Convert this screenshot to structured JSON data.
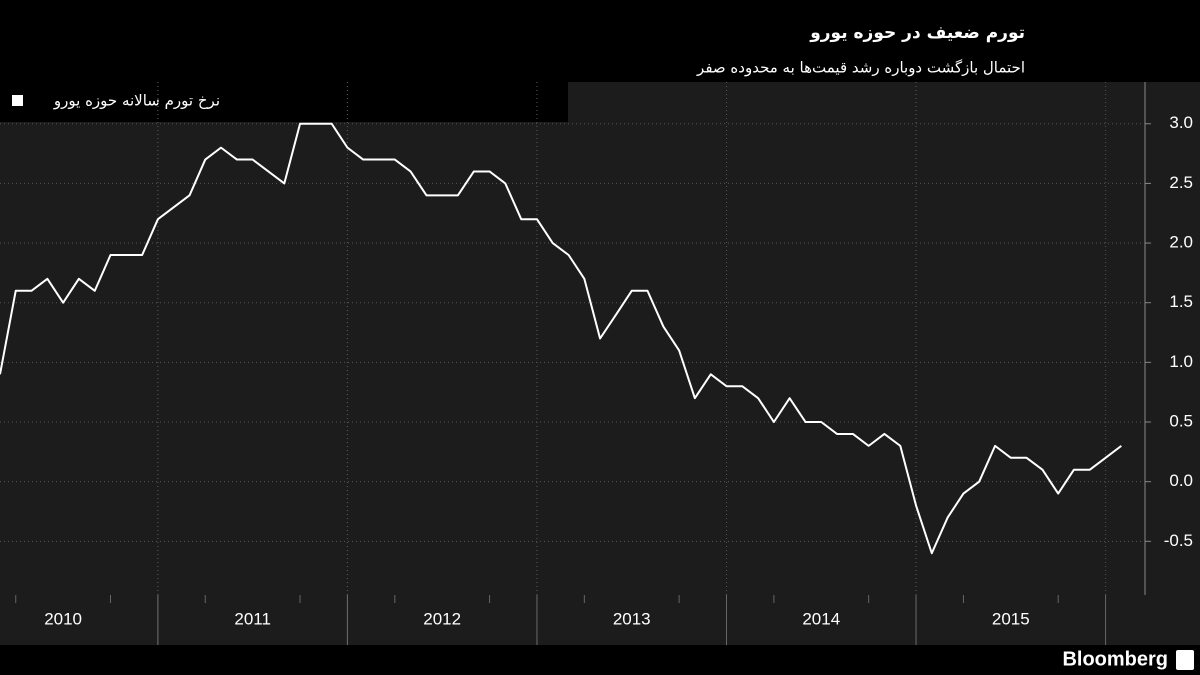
{
  "chart_data": {
    "type": "line",
    "title": "تورم ضعیف در حوزه یورو",
    "subtitle": "احتمال بازگشت دوباره رشد قیمت‌ها به محدوده صفر",
    "source": "Bloomberg",
    "series": [
      {
        "name": "نرخ تورم سالانه حوزه یورو",
        "color": "#ffffff",
        "values": [
          0.9,
          1.6,
          1.6,
          1.7,
          1.5,
          1.7,
          1.6,
          1.9,
          1.9,
          1.9,
          2.2,
          2.3,
          2.4,
          2.7,
          2.8,
          2.7,
          2.7,
          2.6,
          2.5,
          3.0,
          3.0,
          3.0,
          2.8,
          2.7,
          2.7,
          2.7,
          2.6,
          2.4,
          2.4,
          2.4,
          2.6,
          2.6,
          2.5,
          2.2,
          2.2,
          2.0,
          1.9,
          1.7,
          1.2,
          1.4,
          1.6,
          1.6,
          1.3,
          1.1,
          0.7,
          0.9,
          0.8,
          0.8,
          0.7,
          0.5,
          0.7,
          0.5,
          0.5,
          0.4,
          0.4,
          0.3,
          0.4,
          0.3,
          -0.2,
          -0.6,
          -0.3,
          -0.1,
          0.0,
          0.3,
          0.2,
          0.2,
          0.1,
          -0.1,
          0.1,
          0.1,
          0.2,
          0.3
        ]
      }
    ],
    "x": [
      2010.167,
      2010.25,
      2010.333,
      2010.417,
      2010.5,
      2010.583,
      2010.667,
      2010.75,
      2010.833,
      2010.917,
      2011,
      2011.083,
      2011.167,
      2011.25,
      2011.333,
      2011.417,
      2011.5,
      2011.583,
      2011.667,
      2011.75,
      2011.833,
      2011.917,
      2012,
      2012.083,
      2012.167,
      2012.25,
      2012.333,
      2012.417,
      2012.5,
      2012.583,
      2012.667,
      2012.75,
      2012.833,
      2012.917,
      2013,
      2013.083,
      2013.167,
      2013.25,
      2013.333,
      2013.417,
      2013.5,
      2013.583,
      2013.667,
      2013.75,
      2013.833,
      2013.917,
      2014,
      2014.083,
      2014.167,
      2014.25,
      2014.333,
      2014.417,
      2014.5,
      2014.583,
      2014.667,
      2014.75,
      2014.833,
      2014.917,
      2015,
      2015.083,
      2015.167,
      2015.25,
      2015.333,
      2015.417,
      2015.5,
      2015.583,
      2015.667,
      2015.75,
      2015.833,
      2015.917,
      2016,
      2016.083
    ],
    "xlim": [
      2010.167,
      2016.208
    ],
    "xticks": [
      {
        "value": 2010.5,
        "label": "2010"
      },
      {
        "value": 2011.5,
        "label": "2011"
      },
      {
        "value": 2012.5,
        "label": "2012"
      },
      {
        "value": 2013.5,
        "label": "2013"
      },
      {
        "value": 2014.5,
        "label": "2014"
      },
      {
        "value": 2015.5,
        "label": "2015"
      }
    ],
    "ylim": [
      -0.95,
      3.35
    ],
    "yticks": [
      -0.5,
      {
        "value": 0,
        "label": "0.0"
      },
      0.5,
      {
        "value": 1,
        "label": "1.0"
      },
      1.5,
      {
        "value": 2,
        "label": "2.0"
      },
      2.5,
      {
        "value": 3,
        "label": "3.0"
      }
    ],
    "grid": true
  }
}
